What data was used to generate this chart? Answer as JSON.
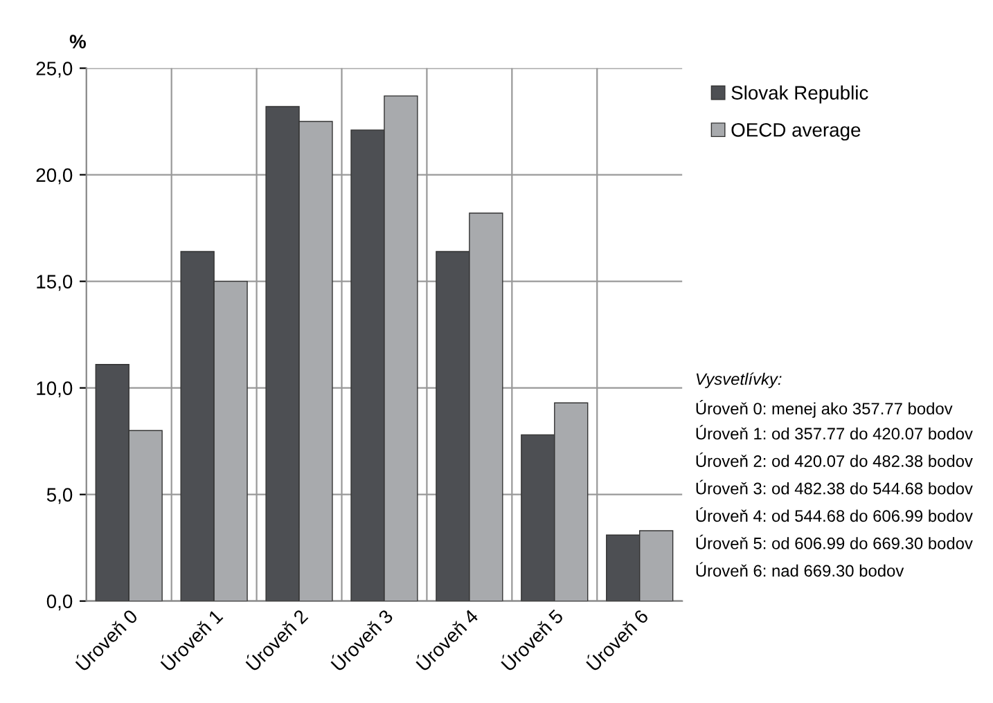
{
  "chart_data": {
    "type": "bar",
    "ylabel": "%",
    "categories": [
      "Úroveň 0",
      "Úroveň 1",
      "Úroveň 2",
      "Úroveň 3",
      "Úroveň 4",
      "Úroveň 5",
      "Úroveň 6"
    ],
    "series": [
      {
        "name": "Slovak Republic",
        "color": "#4d4f53",
        "values": [
          11.1,
          16.4,
          23.2,
          22.1,
          16.4,
          7.8,
          3.1
        ]
      },
      {
        "name": "OECD average",
        "color": "#a8aaad",
        "values": [
          8.0,
          15.0,
          22.5,
          23.7,
          18.2,
          9.3,
          3.3
        ]
      }
    ],
    "ylim": [
      0,
      25
    ],
    "yticks": [
      {
        "value": 0,
        "label": "0,0"
      },
      {
        "value": 5,
        "label": "5,0"
      },
      {
        "value": 10,
        "label": "10,0"
      },
      {
        "value": 15,
        "label": "15,0"
      },
      {
        "value": 20,
        "label": "20,0"
      },
      {
        "value": 25,
        "label": "25,0"
      }
    ],
    "grid": true,
    "legend": "top right",
    "annotations": [
      "Vysvetlívky:",
      "Úroveň 0: menej ako 357.77 bodov",
      "Úroveň 1: od 357.77 do 420.07 bodov",
      "Úroveň 2: od 420.07 do 482.38 bodov",
      "Úroveň 3: od 482.38 do 544.68 bodov",
      "Úroveň 4: od 544.68 do 606.99 bodov",
      "Úroveň 5: od 606.99 do 669.30 bodov",
      "Úroveň 6: nad 669.30 bodov"
    ]
  }
}
